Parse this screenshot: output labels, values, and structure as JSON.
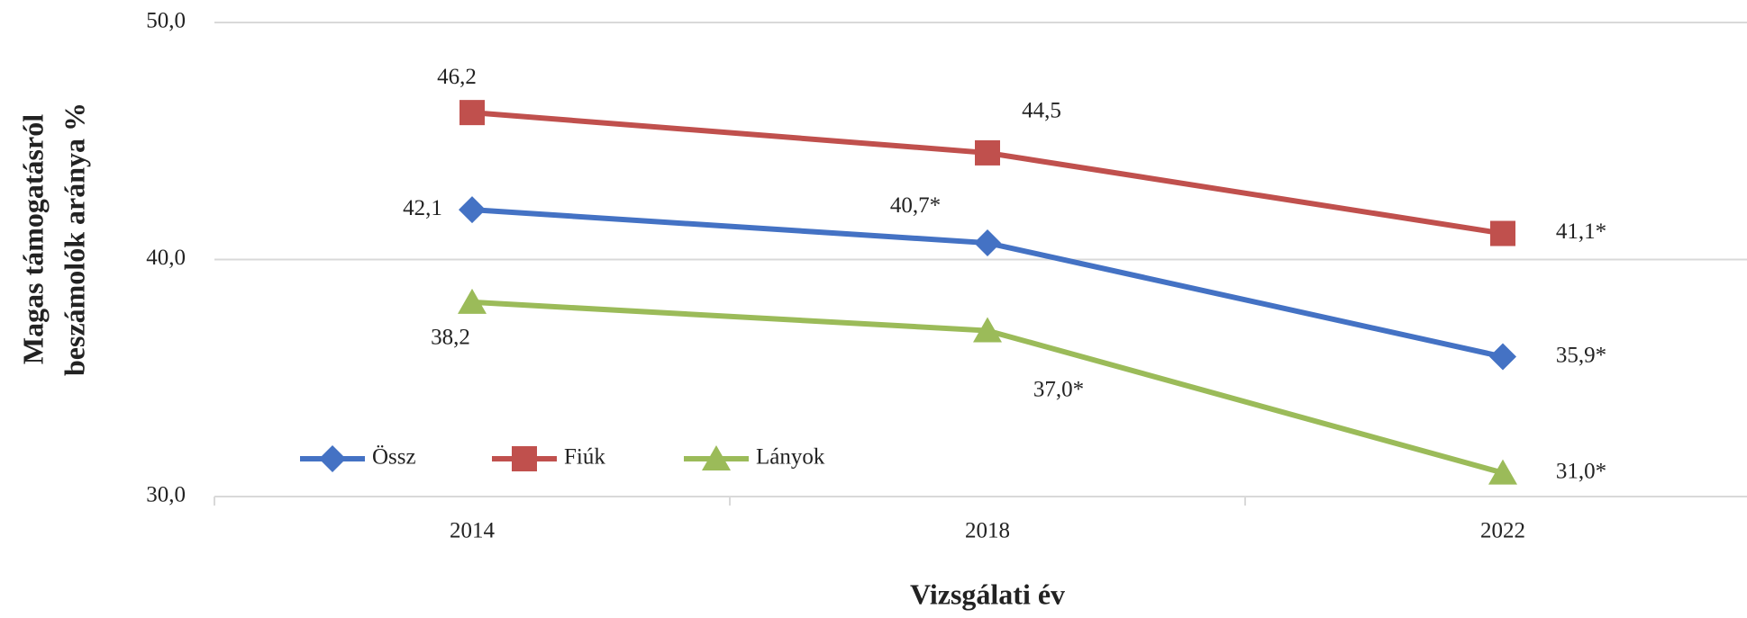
{
  "chart_data": {
    "type": "line",
    "ylabel": [
      "Magas támogatásról",
      "beszámolók aránya %"
    ],
    "xlabel": "Vizsgálati év",
    "categories": [
      "2014",
      "2018",
      "2022"
    ],
    "series": [
      {
        "name": "Össz",
        "color": "#4472c4",
        "marker": "diamond",
        "values": [
          42.1,
          40.7,
          35.9
        ],
        "value_labels": [
          "42,1",
          "40,7*",
          "35,9*"
        ]
      },
      {
        "name": "Fiúk",
        "color": "#c0504d",
        "marker": "square",
        "values": [
          46.2,
          44.5,
          41.1
        ],
        "value_labels": [
          "46,2",
          "44,5",
          "41,1*"
        ]
      },
      {
        "name": "Lányok",
        "color": "#9bbb59",
        "marker": "triangle",
        "values": [
          38.2,
          37.0,
          31.0
        ],
        "value_labels": [
          "38,2",
          "37,0*",
          "31,0*"
        ]
      }
    ],
    "ylim": [
      30,
      50
    ],
    "yticks": [
      {
        "value": 30,
        "label": "30,0"
      },
      {
        "value": 40,
        "label": "40,0"
      },
      {
        "value": 50,
        "label": "50,0"
      }
    ],
    "grid": true
  }
}
